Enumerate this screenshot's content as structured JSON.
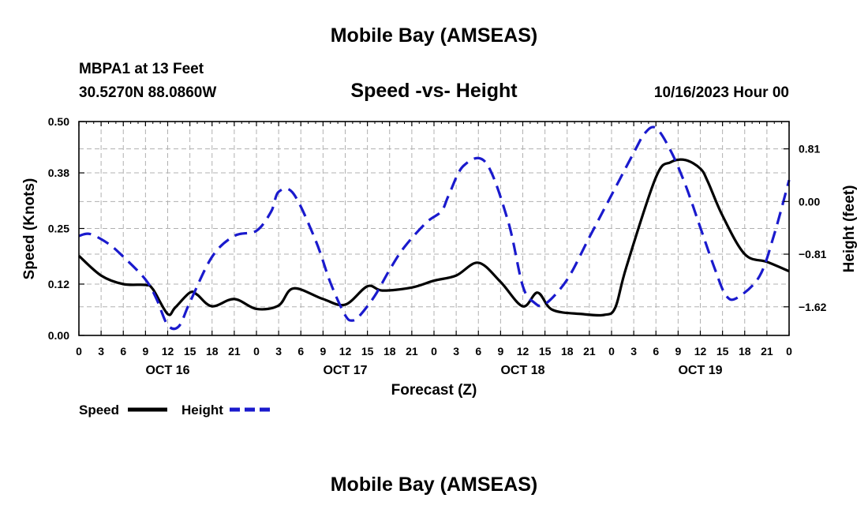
{
  "page": {
    "top_title": "Mobile Bay (AMSEAS)",
    "bottom_title": "Mobile Bay (AMSEAS)",
    "station": "MBPA1 at 13 Feet",
    "coords": "30.5270N  88.0860W",
    "subtitle": "Speed -vs- Height",
    "datestamp": "10/16/2023 Hour 00"
  },
  "chart_data": {
    "type": "line",
    "title": "Speed -vs- Height",
    "xlabel": "Forecast (Z)",
    "ylabel": "Speed (Knots)",
    "y2label": "Height (feet)",
    "xlim": [
      0,
      96
    ],
    "ylim": [
      0,
      0.5
    ],
    "y2lim": [
      -2.06,
      1.23
    ],
    "x_tick_labels": [
      "0",
      "3",
      "6",
      "9",
      "12",
      "15",
      "18",
      "21",
      "0",
      "3",
      "6",
      "9",
      "12",
      "15",
      "18",
      "21",
      "0",
      "3",
      "6",
      "9",
      "12",
      "15",
      "18",
      "21",
      "0",
      "3",
      "6",
      "9",
      "12",
      "15",
      "18",
      "21",
      "0"
    ],
    "date_labels": [
      {
        "label": "OCT 16",
        "x": 12
      },
      {
        "label": "OCT 17",
        "x": 36
      },
      {
        "label": "OCT 18",
        "x": 60
      },
      {
        "label": "OCT 19",
        "x": 84
      }
    ],
    "y_ticks": [
      0.0,
      0.12,
      0.25,
      0.38,
      0.5
    ],
    "y_tick_labels": [
      "0.00",
      "0.12",
      "0.25",
      "0.38",
      "0.50"
    ],
    "y2_ticks": [
      -1.62,
      -0.81,
      0.0,
      0.81
    ],
    "y2_tick_labels": [
      "−1.62",
      "−0.81",
      "0.00",
      "0.81"
    ],
    "grid": true,
    "legend_position": "bottom-left",
    "series": [
      {
        "name": "Speed",
        "axis": "left",
        "color": "#000000",
        "dash": "solid",
        "x": [
          0,
          3,
          6,
          9,
          10,
          12,
          13,
          15,
          16,
          18,
          21,
          24,
          27,
          29,
          33,
          36,
          39,
          41,
          45,
          48,
          51,
          54,
          57,
          60,
          62,
          64,
          68,
          71,
          72.5,
          74,
          78,
          80,
          82,
          84,
          85,
          87,
          90,
          93,
          96
        ],
        "y": [
          0.186,
          0.14,
          0.12,
          0.118,
          0.108,
          0.05,
          0.065,
          0.1,
          0.095,
          0.068,
          0.085,
          0.062,
          0.07,
          0.11,
          0.085,
          0.072,
          0.115,
          0.105,
          0.112,
          0.128,
          0.14,
          0.17,
          0.125,
          0.068,
          0.1,
          0.06,
          0.05,
          0.048,
          0.065,
          0.16,
          0.37,
          0.405,
          0.41,
          0.39,
          0.36,
          0.28,
          0.19,
          0.172,
          0.15
        ]
      },
      {
        "name": "Height",
        "axis": "right",
        "color": "#1a1acd",
        "dash": "dashed",
        "x": [
          0,
          1.5,
          4,
          6,
          9,
          10.5,
          12,
          13.5,
          15,
          18,
          21,
          24,
          26,
          27,
          29,
          32,
          34,
          36,
          37,
          38,
          40,
          42,
          44,
          47,
          49,
          50,
          52,
          55,
          58,
          60,
          61.5,
          63,
          66,
          69,
          72,
          75,
          76.5,
          78,
          80,
          82,
          84,
          86,
          87.5,
          89,
          92,
          94,
          96
        ],
        "y": [
          -0.53,
          -0.5,
          -0.65,
          -0.85,
          -1.2,
          -1.5,
          -1.9,
          -1.92,
          -1.55,
          -0.85,
          -0.53,
          -0.45,
          -0.15,
          0.15,
          0.12,
          -0.6,
          -1.25,
          -1.75,
          -1.83,
          -1.75,
          -1.45,
          -1.05,
          -0.7,
          -0.32,
          -0.15,
          0.1,
          0.55,
          0.6,
          -0.3,
          -1.3,
          -1.55,
          -1.58,
          -1.2,
          -0.55,
          0.1,
          0.75,
          1.05,
          1.13,
          0.78,
          0.25,
          -0.4,
          -1.05,
          -1.45,
          -1.48,
          -1.15,
          -0.5,
          0.33
        ]
      }
    ]
  }
}
